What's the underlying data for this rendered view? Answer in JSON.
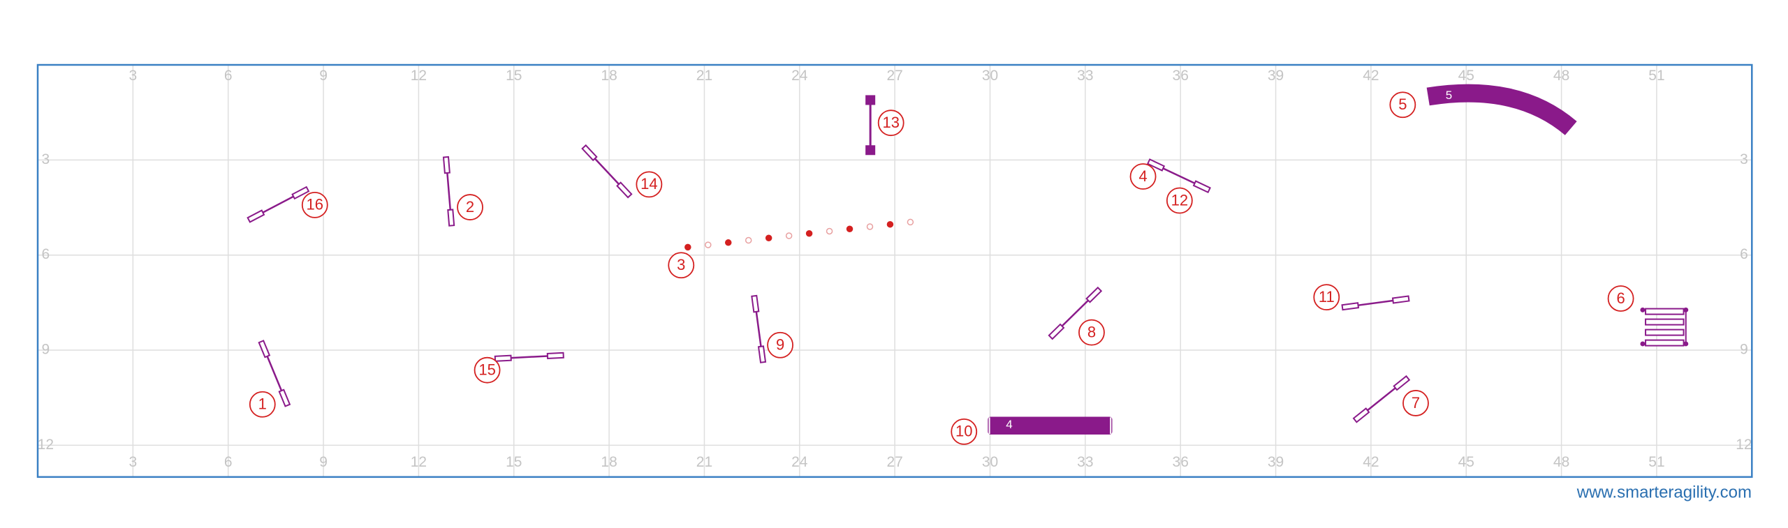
{
  "grid": {
    "x_ticks": [
      3,
      6,
      9,
      12,
      15,
      18,
      21,
      24,
      27,
      30,
      33,
      36,
      39,
      42,
      45,
      48,
      51
    ],
    "y_ticks": [
      3,
      6,
      9,
      12
    ]
  },
  "obstacles": [
    {
      "number": "1"
    },
    {
      "number": "2"
    },
    {
      "number": "3"
    },
    {
      "number": "4"
    },
    {
      "number": "5",
      "tunnel_label": "5"
    },
    {
      "number": "6"
    },
    {
      "number": "7"
    },
    {
      "number": "8"
    },
    {
      "number": "9"
    },
    {
      "number": "10",
      "tunnel_label": "4"
    },
    {
      "number": "11"
    },
    {
      "number": "12"
    },
    {
      "number": "13"
    },
    {
      "number": "14"
    },
    {
      "number": "15"
    },
    {
      "number": "16"
    }
  ],
  "footer": "www.smarteragility.com"
}
